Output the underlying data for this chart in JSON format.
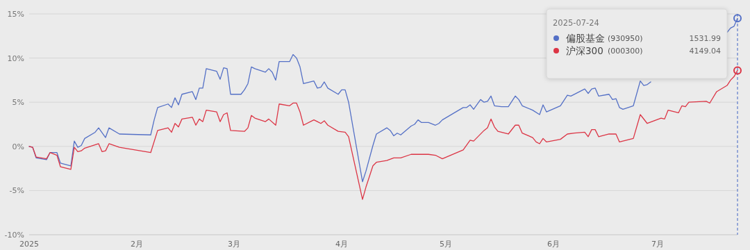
{
  "chart_data": {
    "type": "line",
    "ylim": [
      -10,
      15
    ],
    "yticks": [
      {
        "value": -10,
        "label": "-10%"
      },
      {
        "value": -5,
        "label": "-5%"
      },
      {
        "value": 0,
        "label": "0%"
      },
      {
        "value": 5,
        "label": "5%"
      },
      {
        "value": 10,
        "label": "10%"
      },
      {
        "value": 15,
        "label": "15%"
      }
    ],
    "xlim": [
      "2025-01-01",
      "2025-07-24"
    ],
    "xticks": [
      {
        "value": "2025-01-01",
        "label": "2025"
      },
      {
        "value": "2025-02-01",
        "label": "2月"
      },
      {
        "value": "2025-03-01",
        "label": "3月"
      },
      {
        "value": "2025-04-01",
        "label": "4月"
      },
      {
        "value": "2025-05-01",
        "label": "5月"
      },
      {
        "value": "2025-06-01",
        "label": "6月"
      },
      {
        "value": "2025-07-01",
        "label": "7月"
      }
    ],
    "grid": "y",
    "legend": "top right",
    "line_style": "solid",
    "annotations": [
      "2025-07-24",
      "(930950)",
      "1531.99",
      "(000300)",
      "4149.04"
    ],
    "ref_lines": [
      {
        "axis": "x",
        "value": "2025-07-24",
        "color": "#3f63c4",
        "line_style": "dashed"
      }
    ],
    "series": [
      {
        "name": "偏股基金",
        "color": "#5470c6",
        "x": [
          "2025-01-01",
          "2025-01-02",
          "2025-01-03",
          "2025-01-06",
          "2025-01-07",
          "2025-01-09",
          "2025-01-10",
          "2025-01-13",
          "2025-01-14",
          "2025-01-15",
          "2025-01-16",
          "2025-01-17",
          "2025-01-20",
          "2025-01-21",
          "2025-01-23",
          "2025-01-24",
          "2025-01-27",
          "2025-02-05",
          "2025-02-06",
          "2025-02-07",
          "2025-02-10",
          "2025-02-11",
          "2025-02-12",
          "2025-02-13",
          "2025-02-14",
          "2025-02-17",
          "2025-02-18",
          "2025-02-19",
          "2025-02-20",
          "2025-02-21",
          "2025-02-24",
          "2025-02-25",
          "2025-02-26",
          "2025-02-27",
          "2025-02-28",
          "2025-03-03",
          "2025-03-04",
          "2025-03-05",
          "2025-03-06",
          "2025-03-07",
          "2025-03-10",
          "2025-03-11",
          "2025-03-12",
          "2025-03-13",
          "2025-03-14",
          "2025-03-17",
          "2025-03-18",
          "2025-03-19",
          "2025-03-20",
          "2025-03-21",
          "2025-03-24",
          "2025-03-25",
          "2025-03-26",
          "2025-03-27",
          "2025-03-28",
          "2025-03-31",
          "2025-04-01",
          "2025-04-02",
          "2025-04-03",
          "2025-04-07",
          "2025-04-08",
          "2025-04-10",
          "2025-04-11",
          "2025-04-14",
          "2025-04-15",
          "2025-04-16",
          "2025-04-17",
          "2025-04-18",
          "2025-04-21",
          "2025-04-22",
          "2025-04-23",
          "2025-04-24",
          "2025-04-26",
          "2025-04-28",
          "2025-04-29",
          "2025-04-30",
          "2025-05-06",
          "2025-05-07",
          "2025-05-08",
          "2025-05-09",
          "2025-05-11",
          "2025-05-12",
          "2025-05-13",
          "2025-05-14",
          "2025-05-15",
          "2025-05-17",
          "2025-05-19",
          "2025-05-21",
          "2025-05-22",
          "2025-05-23",
          "2025-05-26",
          "2025-05-28",
          "2025-05-29",
          "2025-05-30",
          "2025-06-03",
          "2025-06-05",
          "2025-06-06",
          "2025-06-10",
          "2025-06-11",
          "2025-06-12",
          "2025-06-13",
          "2025-06-14",
          "2025-06-17",
          "2025-06-18",
          "2025-06-19",
          "2025-06-20",
          "2025-06-21",
          "2025-06-24",
          "2025-06-26",
          "2025-06-27",
          "2025-06-28",
          "2025-06-29",
          "2025-07-10",
          "2025-07-21",
          "2025-07-22",
          "2025-07-23",
          "2025-07-24"
        ],
        "values": [
          0,
          -0.1,
          -1.3,
          -1.5,
          -0.7,
          -0.7,
          -1.9,
          -2.2,
          0.6,
          -0.1,
          0.1,
          0.9,
          1.6,
          2.1,
          1.0,
          2.1,
          1.4,
          1.3,
          3.0,
          4.4,
          4.8,
          4.4,
          5.5,
          4.7,
          5.9,
          6.2,
          5.3,
          6.6,
          6.6,
          8.8,
          8.5,
          7.6,
          8.9,
          8.8,
          5.9,
          5.9,
          6.4,
          7.1,
          9.0,
          8.8,
          8.4,
          8.8,
          8.4,
          7.5,
          9.6,
          9.6,
          10.4,
          10.0,
          9.0,
          7.1,
          7.4,
          6.6,
          6.7,
          7.3,
          6.6,
          5.9,
          6.4,
          6.4,
          5.0,
          -4.0,
          -2.8,
          0.1,
          1.4,
          2.1,
          1.8,
          1.2,
          1.5,
          1.3,
          2.3,
          2.5,
          3.0,
          2.7,
          2.7,
          2.4,
          2.6,
          3.0,
          4.4,
          4.4,
          4.7,
          4.2,
          5.3,
          5.0,
          5.1,
          5.7,
          4.6,
          4.5,
          4.5,
          5.7,
          5.3,
          4.6,
          4.1,
          3.6,
          4.7,
          3.9,
          4.6,
          5.8,
          5.7,
          6.5,
          6.0,
          6.5,
          6.6,
          5.7,
          5.9,
          5.3,
          5.4,
          4.4,
          4.2,
          4.6,
          7.4,
          6.9,
          7.0,
          7.3,
          null,
          12.9,
          13.4,
          13.6,
          14.5
        ]
      },
      {
        "name": "沪深300",
        "color": "#dc3545",
        "x": [
          "2025-01-01",
          "2025-01-02",
          "2025-01-03",
          "2025-01-06",
          "2025-01-07",
          "2025-01-09",
          "2025-01-10",
          "2025-01-13",
          "2025-01-14",
          "2025-01-15",
          "2025-01-16",
          "2025-01-17",
          "2025-01-21",
          "2025-01-22",
          "2025-01-23",
          "2025-01-24",
          "2025-01-27",
          "2025-02-05",
          "2025-02-07",
          "2025-02-10",
          "2025-02-11",
          "2025-02-12",
          "2025-02-13",
          "2025-02-14",
          "2025-02-17",
          "2025-02-18",
          "2025-02-19",
          "2025-02-20",
          "2025-02-21",
          "2025-02-24",
          "2025-02-25",
          "2025-02-26",
          "2025-02-27",
          "2025-02-28",
          "2025-03-04",
          "2025-03-05",
          "2025-03-06",
          "2025-03-07",
          "2025-03-10",
          "2025-03-11",
          "2025-03-13",
          "2025-03-14",
          "2025-03-17",
          "2025-03-18",
          "2025-03-19",
          "2025-03-20",
          "2025-03-21",
          "2025-03-24",
          "2025-03-25",
          "2025-03-26",
          "2025-03-27",
          "2025-03-28",
          "2025-03-31",
          "2025-04-02",
          "2025-04-03",
          "2025-04-07",
          "2025-04-08",
          "2025-04-10",
          "2025-04-11",
          "2025-04-14",
          "2025-04-16",
          "2025-04-18",
          "2025-04-21",
          "2025-04-24",
          "2025-04-26",
          "2025-04-28",
          "2025-04-30",
          "2025-05-06",
          "2025-05-08",
          "2025-05-09",
          "2025-05-12",
          "2025-05-13",
          "2025-05-14",
          "2025-05-15",
          "2025-05-16",
          "2025-05-19",
          "2025-05-21",
          "2025-05-22",
          "2025-05-23",
          "2025-05-26",
          "2025-05-27",
          "2025-05-28",
          "2025-05-29",
          "2025-05-30",
          "2025-06-03",
          "2025-06-05",
          "2025-06-07",
          "2025-06-10",
          "2025-06-11",
          "2025-06-12",
          "2025-06-13",
          "2025-06-14",
          "2025-06-17",
          "2025-06-19",
          "2025-06-20",
          "2025-06-24",
          "2025-06-26",
          "2025-06-28",
          "2025-06-30",
          "2025-07-02",
          "2025-07-03",
          "2025-07-04",
          "2025-07-07",
          "2025-07-08",
          "2025-07-09",
          "2025-07-10",
          "2025-07-15",
          "2025-07-16",
          "2025-07-18",
          "2025-07-21",
          "2025-07-22",
          "2025-07-23",
          "2025-07-24"
        ],
        "values": [
          0,
          -0.1,
          -1.2,
          -1.4,
          -0.7,
          -1.0,
          -2.3,
          -2.6,
          -0.1,
          -0.6,
          -0.5,
          -0.2,
          0.3,
          -0.6,
          -0.5,
          0.3,
          -0.1,
          -0.7,
          1.8,
          2.1,
          1.6,
          2.6,
          2.2,
          3.1,
          3.3,
          2.4,
          3.1,
          2.8,
          4.1,
          3.9,
          2.8,
          3.6,
          3.8,
          1.8,
          1.7,
          2.1,
          3.5,
          3.2,
          2.8,
          3.1,
          2.4,
          4.8,
          4.6,
          4.9,
          4.9,
          3.9,
          2.4,
          3.0,
          2.8,
          2.6,
          2.9,
          2.4,
          1.7,
          1.6,
          1.1,
          -6.0,
          -4.6,
          -2.2,
          -1.8,
          -1.6,
          -1.3,
          -1.3,
          -0.9,
          -0.9,
          -0.9,
          -1.0,
          -1.4,
          -0.4,
          0.7,
          0.6,
          1.8,
          2.1,
          3.1,
          2.2,
          1.7,
          1.4,
          2.4,
          2.4,
          1.5,
          1.0,
          0.5,
          0.3,
          0.9,
          0.5,
          0.8,
          1.4,
          1.5,
          1.6,
          1.1,
          1.9,
          1.9,
          1.1,
          1.4,
          1.4,
          0.5,
          0.9,
          3.6,
          2.6,
          2.9,
          3.2,
          3.1,
          4.1,
          3.8,
          4.6,
          4.5,
          5.0,
          5.1,
          4.9,
          6.2,
          6.9,
          7.5,
          7.9,
          8.6
        ]
      }
    ]
  }
}
